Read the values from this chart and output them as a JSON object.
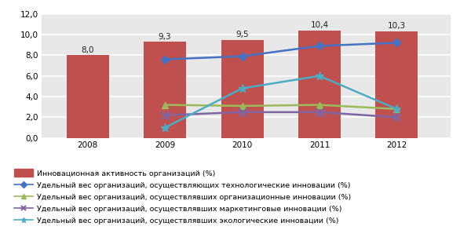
{
  "years": [
    2008,
    2009,
    2010,
    2011,
    2012
  ],
  "bar_values": [
    8.0,
    9.3,
    9.5,
    10.4,
    10.3
  ],
  "bar_color": "#C0504D",
  "bar_labels": [
    "8,0",
    "9,3",
    "9,5",
    "10,4",
    "10,3"
  ],
  "line_tech": [
    null,
    7.6,
    7.9,
    8.9,
    9.2
  ],
  "line_org": [
    null,
    3.2,
    3.1,
    3.2,
    2.8
  ],
  "line_market": [
    null,
    2.2,
    2.5,
    2.5,
    2.0
  ],
  "line_eco": [
    null,
    1.0,
    4.8,
    6.0,
    2.8
  ],
  "line_tech_color": "#4472C4",
  "line_org_color": "#9BBB59",
  "line_market_color": "#8064A2",
  "line_eco_color": "#4BACC6",
  "ylim": [
    0,
    12
  ],
  "yticks": [
    0.0,
    2.0,
    4.0,
    6.0,
    8.0,
    10.0,
    12.0
  ],
  "legend_bar": "Инновационная активность организаций (%)",
  "legend_tech": "Удельный вес организаций, осуществляющих технологические инновации (%)",
  "legend_org": "Удельный вес организаций, осуществлявших организационные инновации (%)",
  "legend_market": "Удельный вес организаций, осуществлявших маркетинговые инновации (%)",
  "legend_eco": "Удельный вес организаций, осуществлявших экологические инновации (%)",
  "plot_bg_color": "#E8E8E8",
  "fig_bg_color": "#FFFFFF",
  "grid_color": "#FFFFFF",
  "bar_width": 0.55,
  "label_fontsize": 7.5,
  "legend_fontsize": 6.8,
  "tick_fontsize": 7.5
}
